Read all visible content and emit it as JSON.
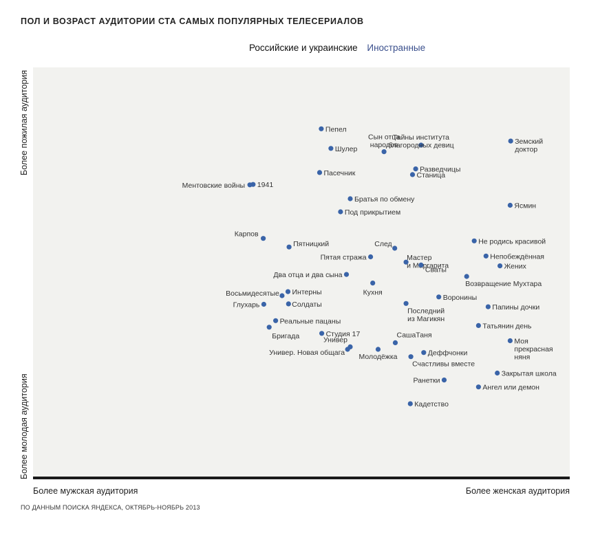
{
  "chart_data": {
    "type": "scatter",
    "title": "Пол и возраст аудитории ста самых популярных телесериалов",
    "legend": [
      {
        "name": "Российские и украинские",
        "color": "#111111"
      },
      {
        "name": "Иностранные",
        "color": "#3a4f8c"
      }
    ],
    "xlabel_left": "Более мужская аудитория",
    "xlabel_right": "Более женская аудитория",
    "ylabel_top": "Более пожилая аудитория",
    "ylabel_bottom": "Более молодая аудитория",
    "xlim": [
      0,
      100
    ],
    "ylim": [
      0,
      100
    ],
    "grid": false,
    "point_color": "#3a64a8",
    "points": [
      {
        "x": 53.7,
        "y": 85.0,
        "label": "Пепел",
        "lines": [
          "Пепел"
        ]
      },
      {
        "x": 55.5,
        "y": 80.2,
        "label": "Шулер",
        "lines": [
          "Шулер"
        ]
      },
      {
        "x": 65.4,
        "y": 79.4,
        "label": "Сын отца народов",
        "lines": [
          "Сын отца",
          "народов"
        ]
      },
      {
        "x": 72.3,
        "y": 81.0,
        "label": "Тайны института благородных девиц",
        "lines": [
          "Тайны института",
          "благородных девиц"
        ]
      },
      {
        "x": 89.0,
        "y": 82.0,
        "label": "Земский доктор",
        "lines": [
          "Земский",
          "доктор"
        ]
      },
      {
        "x": 53.4,
        "y": 74.3,
        "label": "Пасечник",
        "lines": [
          "Пасечник"
        ]
      },
      {
        "x": 71.3,
        "y": 75.2,
        "label": "Разведчицы",
        "lines": [
          "Разведчицы"
        ]
      },
      {
        "x": 70.7,
        "y": 73.8,
        "label": "Станица",
        "lines": [
          "Станица"
        ]
      },
      {
        "x": 40.4,
        "y": 71.3,
        "label": "Ментовские войны",
        "lines": [
          "Ментовские войны"
        ]
      },
      {
        "x": 41.0,
        "y": 71.4,
        "label": "1941",
        "lines": [
          "1941"
        ]
      },
      {
        "x": 59.1,
        "y": 67.9,
        "label": "Братья по обмену",
        "lines": [
          "Братья по обмену"
        ]
      },
      {
        "x": 57.3,
        "y": 64.7,
        "label": "Под прикрытием",
        "lines": [
          "Под прикрытием"
        ]
      },
      {
        "x": 88.9,
        "y": 66.3,
        "label": "Ясмин",
        "lines": [
          "Ясмин"
        ]
      },
      {
        "x": 42.9,
        "y": 58.2,
        "label": "Карпов",
        "lines": [
          "Карпов"
        ]
      },
      {
        "x": 47.7,
        "y": 56.1,
        "label": "Пятницкий",
        "lines": [
          "Пятницкий"
        ]
      },
      {
        "x": 67.4,
        "y": 55.8,
        "label": "След",
        "lines": [
          "След"
        ]
      },
      {
        "x": 62.9,
        "y": 53.7,
        "label": "Пятая стража",
        "lines": [
          "Пятая стража"
        ]
      },
      {
        "x": 69.5,
        "y": 52.4,
        "label": "Мастер и Маргарита",
        "lines": [
          "Мастер",
          "и Маргарита"
        ]
      },
      {
        "x": 72.3,
        "y": 51.7,
        "label": "Сваты",
        "lines": [
          "Сваты"
        ]
      },
      {
        "x": 82.2,
        "y": 57.6,
        "label": "Не родись красивой",
        "lines": [
          "Не родись красивой"
        ]
      },
      {
        "x": 84.4,
        "y": 53.9,
        "label": "Непобеждённая",
        "lines": [
          "Непобеждённая"
        ]
      },
      {
        "x": 87.0,
        "y": 51.5,
        "label": "Жених",
        "lines": [
          "Жених"
        ]
      },
      {
        "x": 58.4,
        "y": 49.4,
        "label": "Два отца и два сына",
        "lines": [
          "Два отца и два сына"
        ]
      },
      {
        "x": 80.8,
        "y": 48.9,
        "label": "Возвращение Мухтара",
        "lines": [
          "Возвращение Мухтара"
        ]
      },
      {
        "x": 63.3,
        "y": 47.3,
        "label": "Кухня",
        "lines": [
          "Кухня"
        ]
      },
      {
        "x": 47.5,
        "y": 45.2,
        "label": "Интерны",
        "lines": [
          "Интерны"
        ]
      },
      {
        "x": 46.4,
        "y": 44.2,
        "label": "Восьмидесятые",
        "lines": [
          "Восьмидесятые"
        ]
      },
      {
        "x": 75.6,
        "y": 43.9,
        "label": "Воронины",
        "lines": [
          "Воронины"
        ]
      },
      {
        "x": 43.0,
        "y": 42.1,
        "label": "Глухарь",
        "lines": [
          "Глухарь"
        ]
      },
      {
        "x": 47.6,
        "y": 42.2,
        "label": "Солдаты",
        "lines": [
          "Солдаты"
        ]
      },
      {
        "x": 69.5,
        "y": 42.3,
        "label": "Последний из Магикян",
        "lines": [
          "Последний",
          "из Магикян"
        ]
      },
      {
        "x": 84.8,
        "y": 41.5,
        "label": "Папины дочки",
        "lines": [
          "Папины дочки"
        ]
      },
      {
        "x": 45.2,
        "y": 38.1,
        "label": "Реальные пацаны",
        "lines": [
          "Реальные пацаны"
        ]
      },
      {
        "x": 44.0,
        "y": 36.5,
        "label": "Бригада",
        "lines": [
          "Бригада"
        ]
      },
      {
        "x": 53.8,
        "y": 35.0,
        "label": "Студия 17",
        "lines": [
          "Студия 17"
        ]
      },
      {
        "x": 83.0,
        "y": 36.9,
        "label": "Татьянин день",
        "lines": [
          "Татьянин день"
        ]
      },
      {
        "x": 59.1,
        "y": 31.7,
        "label": "Универ",
        "lines": [
          "Универ"
        ]
      },
      {
        "x": 58.6,
        "y": 31.1,
        "label": "Универ. Новая общага",
        "lines": [
          "Универ. Новая общага"
        ]
      },
      {
        "x": 67.5,
        "y": 32.7,
        "label": "СашаТаня",
        "lines": [
          "СашаТаня"
        ]
      },
      {
        "x": 88.9,
        "y": 33.2,
        "label": "Моя прекрасная няня",
        "lines": [
          "Моя",
          "прекрасная",
          "няня"
        ]
      },
      {
        "x": 64.3,
        "y": 31.1,
        "label": "Молодёжка",
        "lines": [
          "Молодёжка"
        ]
      },
      {
        "x": 72.8,
        "y": 30.3,
        "label": "Деффчонки",
        "lines": [
          "Деффчонки"
        ]
      },
      {
        "x": 70.4,
        "y": 29.3,
        "label": "Счастливы вместе",
        "lines": [
          "Счастливы вместе"
        ]
      },
      {
        "x": 86.5,
        "y": 25.3,
        "label": "Закрытая школа",
        "lines": [
          "Закрытая школа"
        ]
      },
      {
        "x": 76.6,
        "y": 23.6,
        "label": "Ранетки",
        "lines": [
          "Ранетки"
        ]
      },
      {
        "x": 83.0,
        "y": 21.9,
        "label": "Ангел или демон",
        "lines": [
          "Ангел или демон"
        ]
      },
      {
        "x": 70.3,
        "y": 17.8,
        "label": "Кадетство",
        "lines": [
          "Кадетство"
        ]
      }
    ]
  },
  "footer": {
    "source": "По данным поиска Яндекса, октябрь-ноябрь 2013"
  }
}
